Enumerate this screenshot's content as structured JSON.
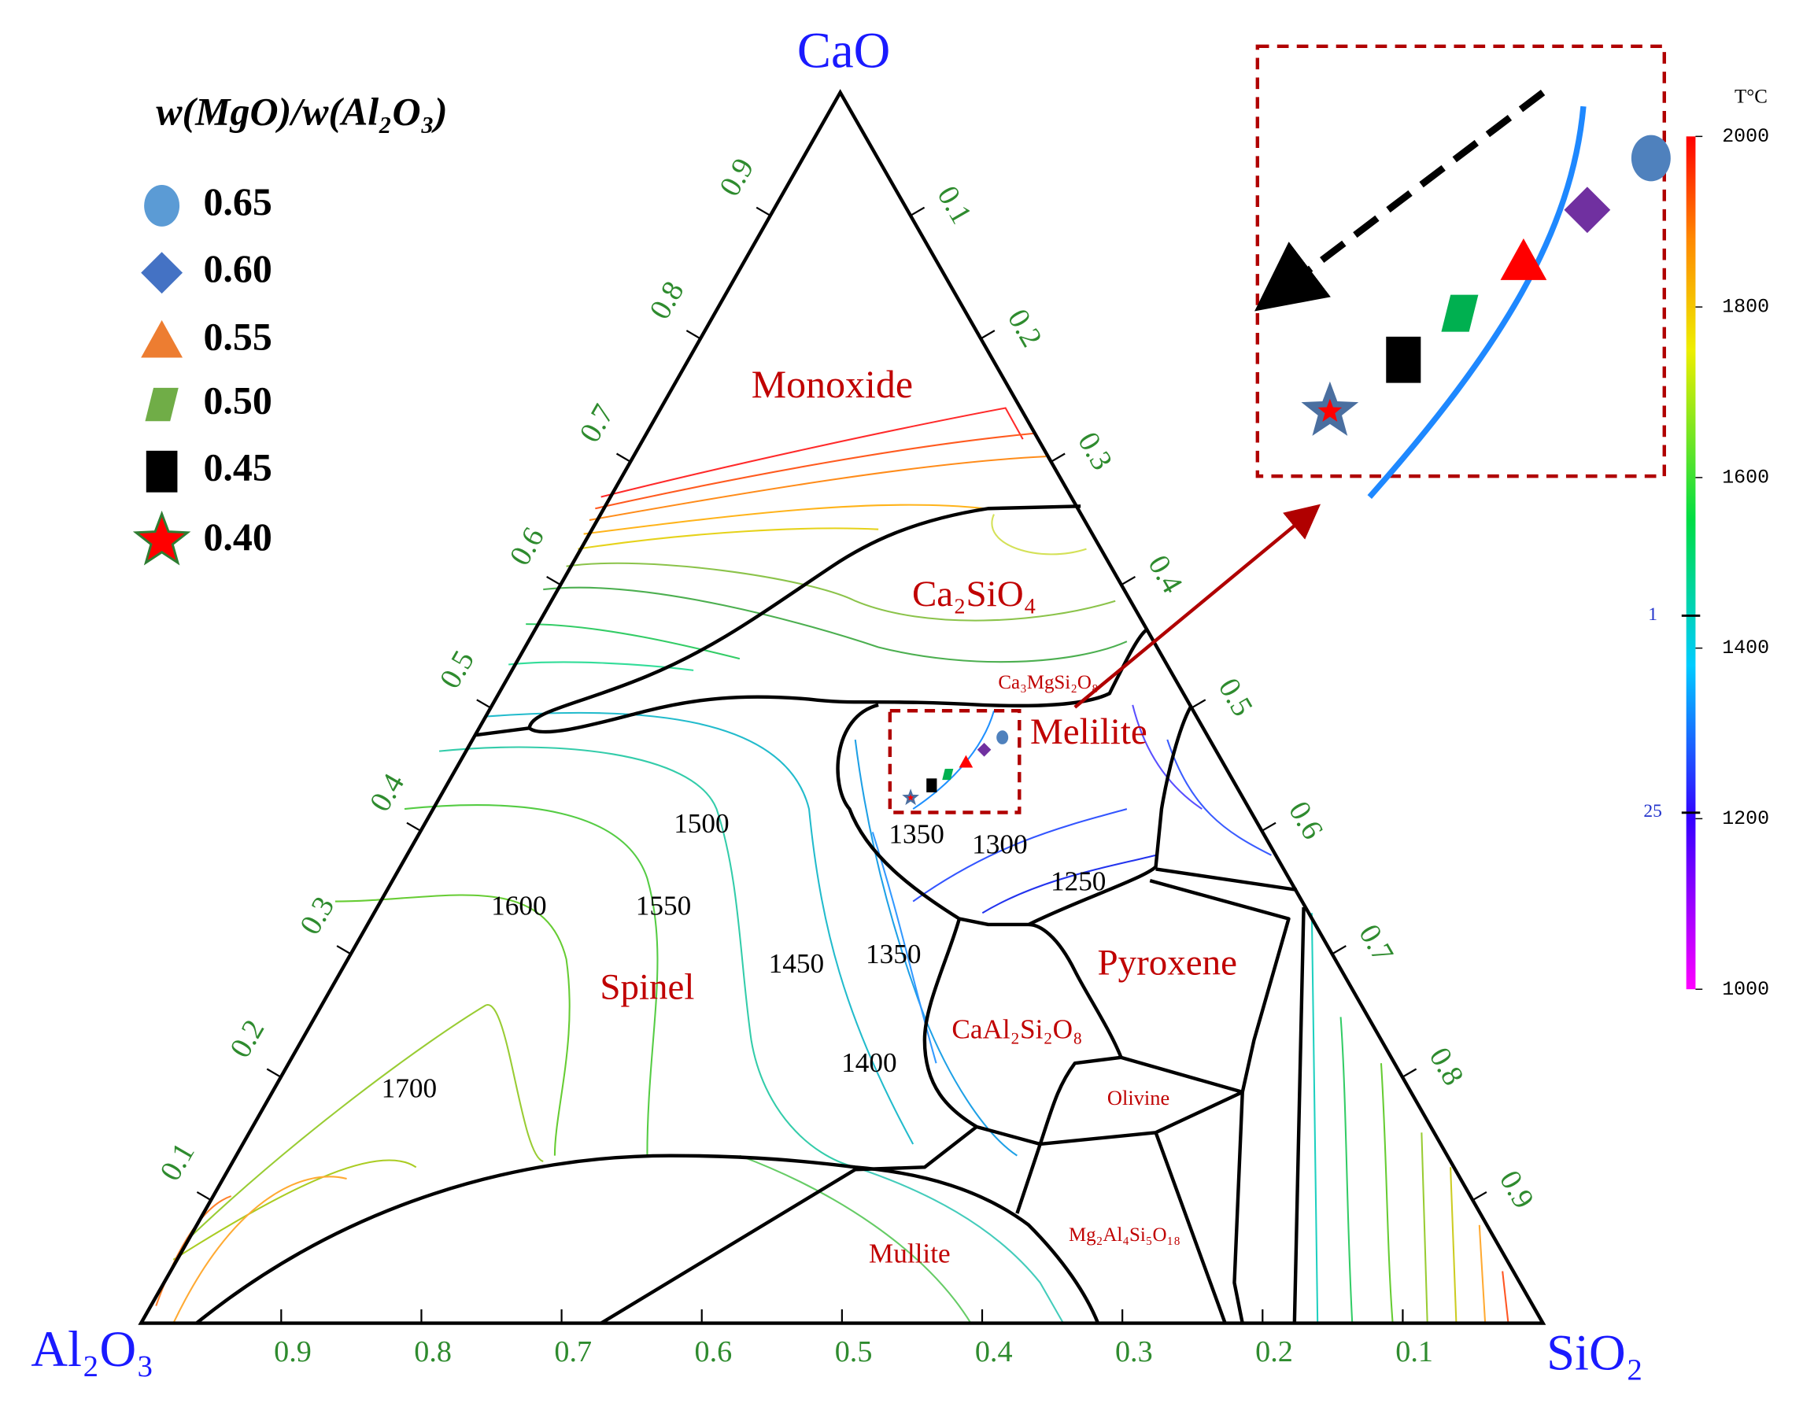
{
  "chart_data": {
    "type": "ternary",
    "corners": {
      "top": "CaO",
      "left": "Al₂O₃",
      "right": "SiO₂"
    },
    "cao_ticks": [
      0.1,
      0.2,
      0.3,
      0.4,
      0.5,
      0.6,
      0.7,
      0.8,
      0.9
    ],
    "sio2_ticks": [
      0.1,
      0.2,
      0.3,
      0.4,
      0.5,
      0.6,
      0.7,
      0.8,
      0.9
    ],
    "al2o3_ticks": [
      0.9,
      0.8,
      0.7,
      0.6,
      0.5,
      0.4,
      0.3,
      0.2,
      0.1
    ],
    "legend_title": "w(MgO)/w(Al₂O₃)",
    "series": [
      {
        "name": "0.65",
        "marker": "circle",
        "color": "#5b9bd5",
        "plot_color": "#4f81bd",
        "cao": 0.476,
        "sio2": 0.377
      },
      {
        "name": "0.60",
        "marker": "diamond",
        "color": "#4472c4",
        "plot_color": "#7030a0",
        "cao": 0.466,
        "sio2": 0.369
      },
      {
        "name": "0.55",
        "marker": "triangle",
        "color": "#ed7d31",
        "plot_color": "#ff0000",
        "cao": 0.456,
        "sio2": 0.361
      },
      {
        "name": "0.50",
        "marker": "parallelogram",
        "color": "#70ad47",
        "plot_color": "#00b050",
        "cao": 0.446,
        "sio2": 0.353
      },
      {
        "name": "0.45",
        "marker": "square",
        "color": "#000000",
        "plot_color": "#000000",
        "cao": 0.437,
        "sio2": 0.346
      },
      {
        "name": "0.40",
        "marker": "star",
        "color": "#ff0000",
        "plot_color": "#4a6fa0",
        "cao": 0.427,
        "sio2": 0.336
      }
    ],
    "phase_regions": [
      "Monoxide",
      "Ca₂SiO₄",
      "Ca₃MgSi₂O₈",
      "Melilite",
      "Pyroxene",
      "Spinel",
      "CaAl₂Si₂O₈",
      "Olivine",
      "Mg₂Al₄Si₅O₁₈",
      "Mullite"
    ],
    "isotherm_labels": [
      1500,
      1600,
      1550,
      1450,
      1350,
      1400,
      1700,
      1350,
      1300,
      1250
    ],
    "colorbar": {
      "title": "T°C",
      "ylim": [
        1000,
        2000
      ],
      "yticks": [
        1000,
        1200,
        1400,
        1600,
        1800,
        2000
      ],
      "annotations": [
        {
          "value": 1438,
          "label": "1"
        },
        {
          "value": 1207,
          "label": "25"
        }
      ]
    }
  }
}
